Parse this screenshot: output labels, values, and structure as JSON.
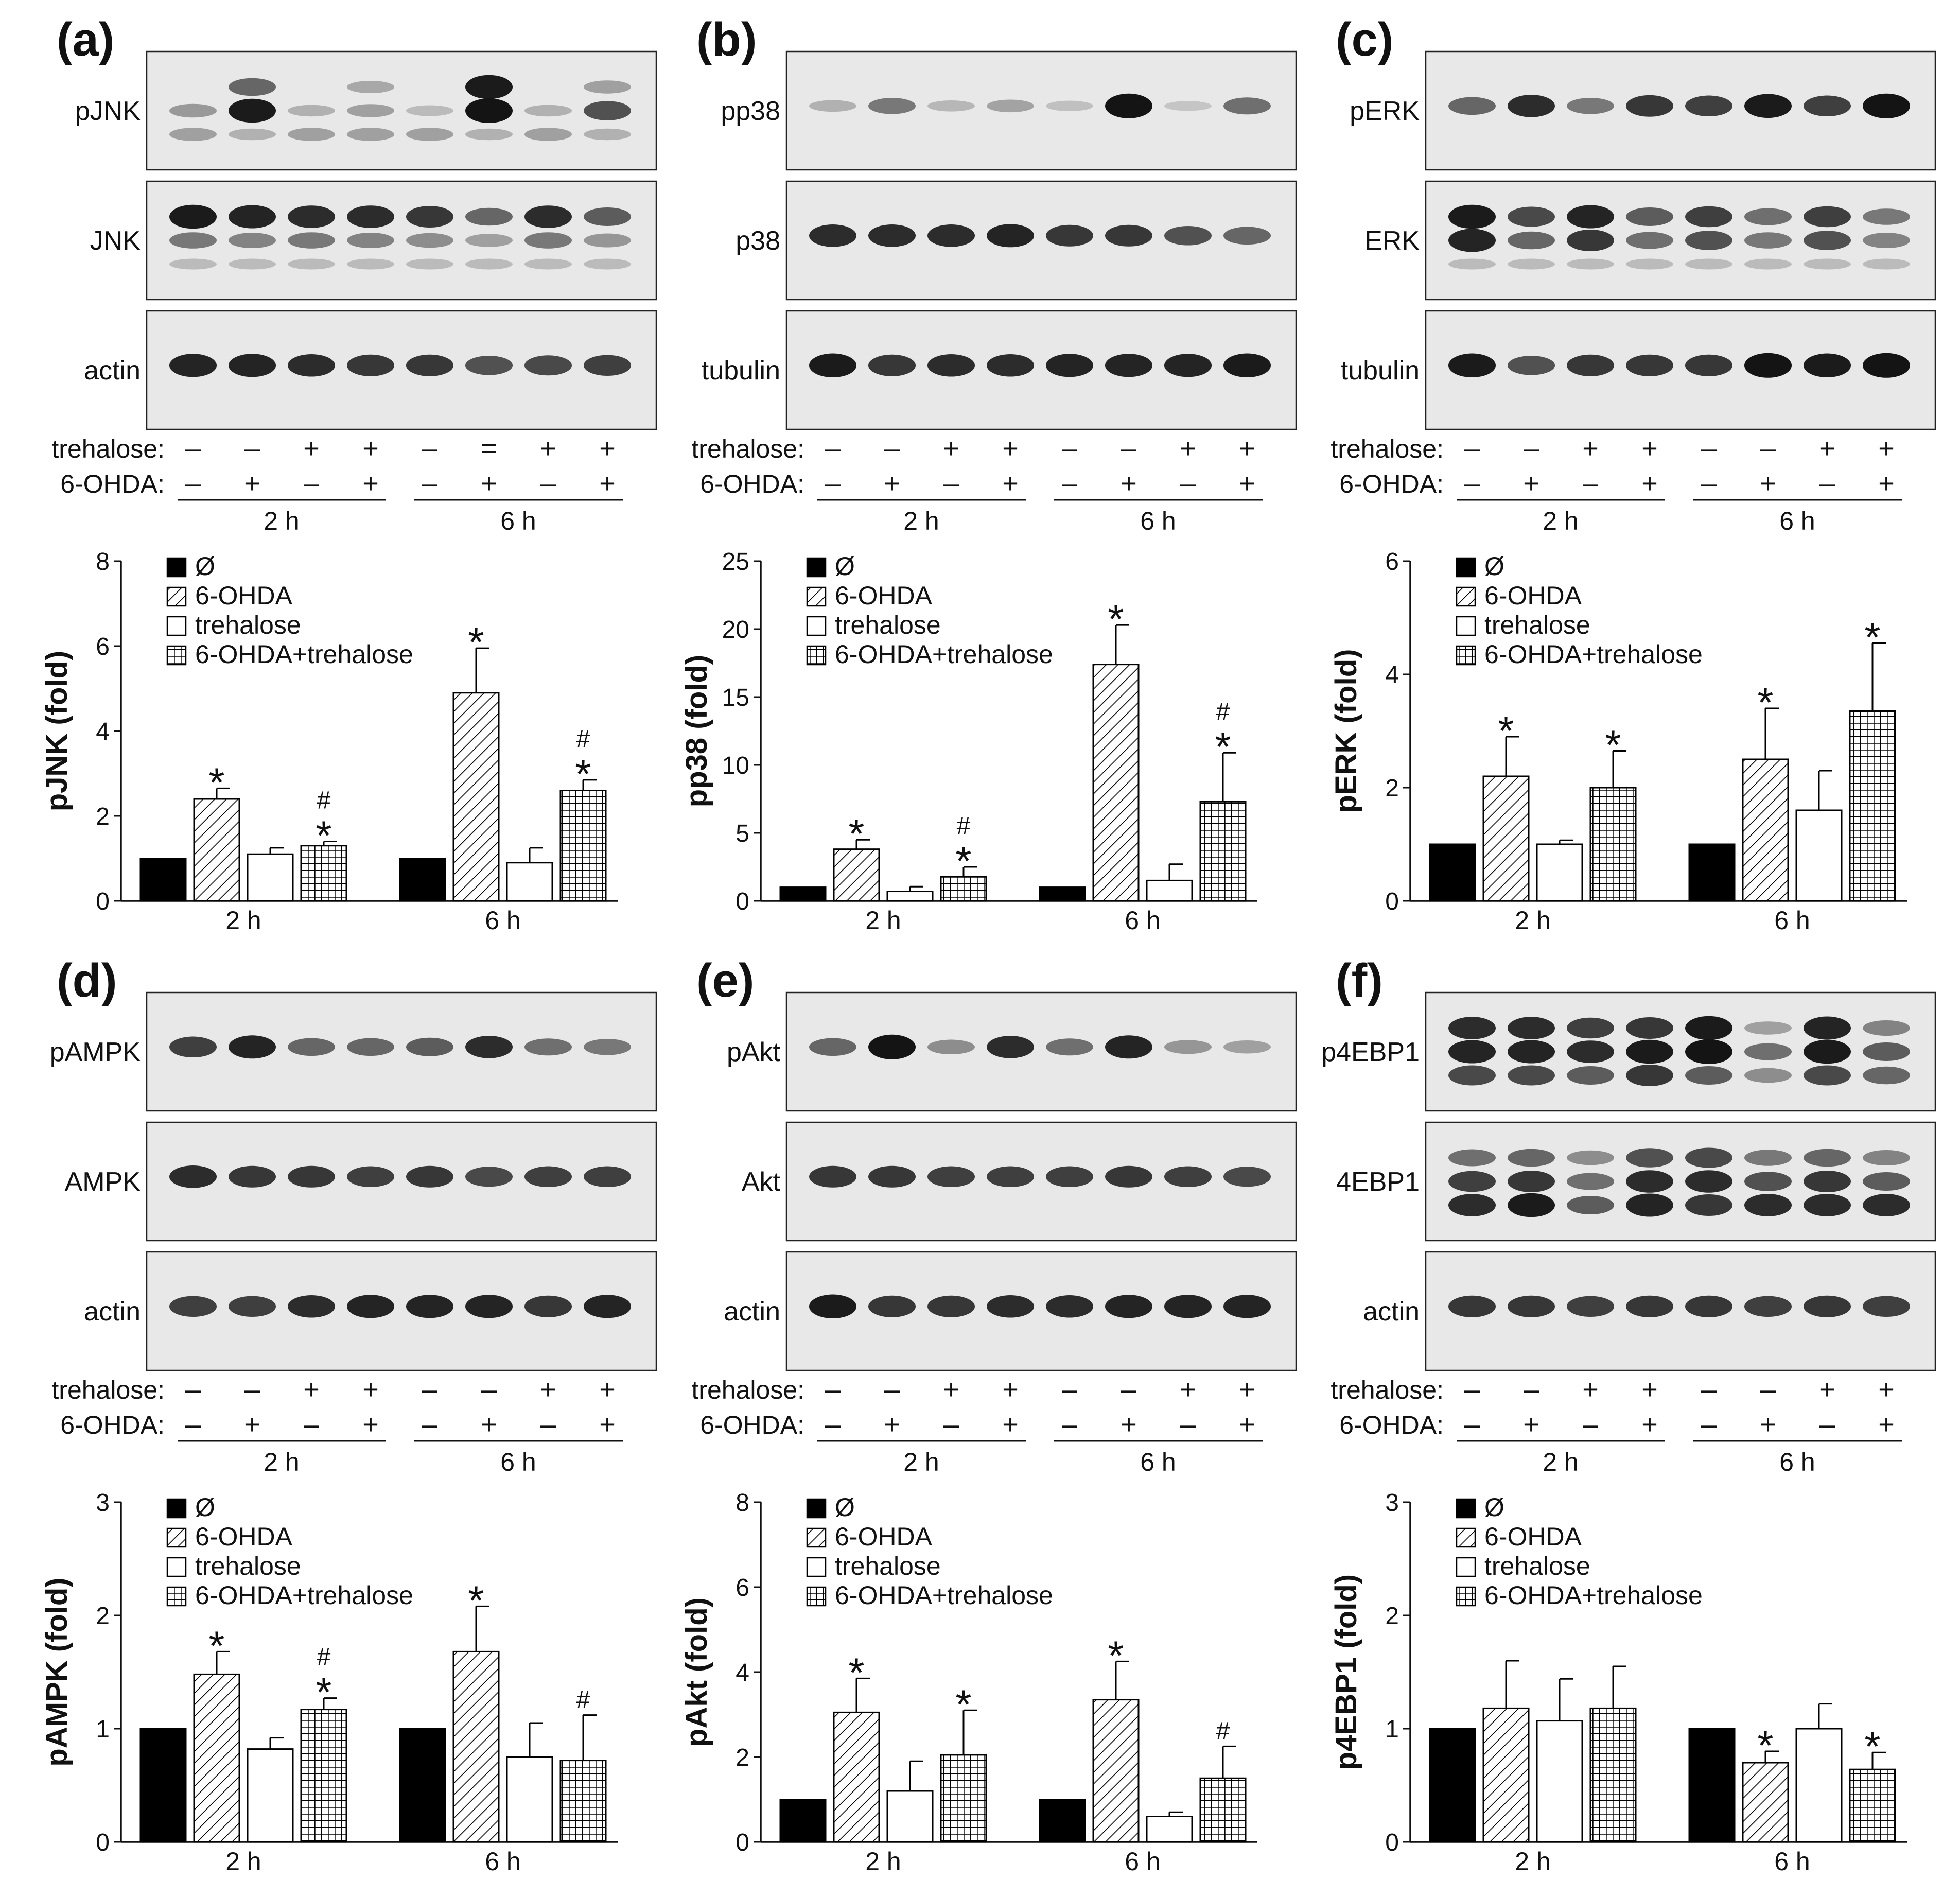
{
  "figure": {
    "groups": [
      "2 h",
      "6 h"
    ],
    "row_labels": [
      "trehalose:",
      "6-OHDA:"
    ],
    "trehalose_signs": [
      "–",
      "–",
      "+",
      "+",
      "–",
      "–",
      "+",
      "+"
    ],
    "trehalose_signs_a": [
      "–",
      "–",
      "+",
      "+",
      "–",
      "=",
      "+",
      "+"
    ],
    "ohda_signs": [
      "–",
      "+",
      "–",
      "+",
      "–",
      "+",
      "–",
      "+"
    ],
    "legend": [
      "Ø",
      "6-OHDA",
      "trehalose",
      "6-OHDA+trehalose"
    ],
    "colors": {
      "control": "#000000",
      "bar_fill": "#ffffff",
      "blot_bg": "#e8e8e8",
      "band": "#141414"
    }
  },
  "panels": [
    {
      "letter": "(a)",
      "blots": [
        {
          "label": "pJNK",
          "bands": [
            [
              0,
              0.28,
              0.25
            ],
            [
              0.55,
              0.95,
              0.15
            ],
            [
              0,
              0.15,
              0.25
            ],
            [
              0.2,
              0.25,
              0.25
            ],
            [
              0,
              0.1,
              0.25
            ],
            [
              0.95,
              1.0,
              0.15
            ],
            [
              0,
              0.15,
              0.25
            ],
            [
              0.25,
              0.65,
              0.15
            ]
          ]
        },
        {
          "label": "JNK",
          "bands": [
            [
              0.95,
              0.45,
              0.1
            ],
            [
              0.9,
              0.4,
              0.1
            ],
            [
              0.85,
              0.45,
              0.1
            ],
            [
              0.85,
              0.4,
              0.1
            ],
            [
              0.8,
              0.35,
              0.1
            ],
            [
              0.55,
              0.25,
              0.1
            ],
            [
              0.85,
              0.45,
              0.1
            ],
            [
              0.6,
              0.3,
              0.1
            ]
          ]
        },
        {
          "label": "actin",
          "bands": [
            [
              0.9
            ],
            [
              0.9
            ],
            [
              0.85
            ],
            [
              0.8
            ],
            [
              0.8
            ],
            [
              0.65
            ],
            [
              0.7
            ],
            [
              0.75
            ]
          ]
        }
      ],
      "treatment_row": "a"
    },
    {
      "letter": "(b)",
      "blots": [
        {
          "label": "pp38",
          "bands": [
            [
              0.15
            ],
            [
              0.45
            ],
            [
              0.12
            ],
            [
              0.22
            ],
            [
              0.08
            ],
            [
              1.0
            ],
            [
              0.04
            ],
            [
              0.5
            ]
          ]
        },
        {
          "label": "p38",
          "bands": [
            [
              0.85
            ],
            [
              0.85
            ],
            [
              0.85
            ],
            [
              0.9
            ],
            [
              0.8
            ],
            [
              0.8
            ],
            [
              0.65
            ],
            [
              0.55
            ]
          ]
        },
        {
          "label": "tubulin",
          "bands": [
            [
              0.95
            ],
            [
              0.8
            ],
            [
              0.85
            ],
            [
              0.85
            ],
            [
              0.9
            ],
            [
              0.9
            ],
            [
              0.9
            ],
            [
              0.95
            ]
          ]
        }
      ],
      "treatment_row": "default"
    },
    {
      "letter": "(c)",
      "blots": [
        {
          "label": "pERK",
          "bands": [
            [
              0.55
            ],
            [
              0.85
            ],
            [
              0.45
            ],
            [
              0.8
            ],
            [
              0.75
            ],
            [
              0.95
            ],
            [
              0.75
            ],
            [
              1.0
            ]
          ]
        },
        {
          "label": "ERK",
          "bands": [
            [
              0.95,
              0.9,
              0.1
            ],
            [
              0.7,
              0.55,
              0.1
            ],
            [
              0.9,
              0.8,
              0.1
            ],
            [
              0.6,
              0.5,
              0.1
            ],
            [
              0.75,
              0.65,
              0.1
            ],
            [
              0.5,
              0.45,
              0.1
            ],
            [
              0.75,
              0.65,
              0.1
            ],
            [
              0.45,
              0.4,
              0.1
            ]
          ]
        },
        {
          "label": "tubulin",
          "bands": [
            [
              0.95
            ],
            [
              0.65
            ],
            [
              0.8
            ],
            [
              0.8
            ],
            [
              0.8
            ],
            [
              1.0
            ],
            [
              0.95
            ],
            [
              1.0
            ]
          ]
        }
      ],
      "treatment_row": "default"
    },
    {
      "letter": "(d)",
      "blots": [
        {
          "label": "pAMPK",
          "bands": [
            [
              0.75
            ],
            [
              0.9
            ],
            [
              0.55
            ],
            [
              0.55
            ],
            [
              0.6
            ],
            [
              0.85
            ],
            [
              0.5
            ],
            [
              0.45
            ]
          ]
        },
        {
          "label": "AMPK",
          "bands": [
            [
              0.85
            ],
            [
              0.8
            ],
            [
              0.8
            ],
            [
              0.75
            ],
            [
              0.8
            ],
            [
              0.7
            ],
            [
              0.75
            ],
            [
              0.75
            ]
          ]
        },
        {
          "label": "actin",
          "bands": [
            [
              0.75
            ],
            [
              0.75
            ],
            [
              0.85
            ],
            [
              0.9
            ],
            [
              0.9
            ],
            [
              0.9
            ],
            [
              0.8
            ],
            [
              0.9
            ]
          ]
        }
      ],
      "treatment_row": "default"
    },
    {
      "letter": "(e)",
      "blots": [
        {
          "label": "pAkt",
          "bands": [
            [
              0.55
            ],
            [
              1.0
            ],
            [
              0.35
            ],
            [
              0.85
            ],
            [
              0.5
            ],
            [
              0.9
            ],
            [
              0.3
            ],
            [
              0.25
            ]
          ]
        },
        {
          "label": "Akt",
          "bands": [
            [
              0.8
            ],
            [
              0.8
            ],
            [
              0.75
            ],
            [
              0.75
            ],
            [
              0.75
            ],
            [
              0.8
            ],
            [
              0.75
            ],
            [
              0.7
            ]
          ]
        },
        {
          "label": "actin",
          "bands": [
            [
              0.95
            ],
            [
              0.8
            ],
            [
              0.8
            ],
            [
              0.85
            ],
            [
              0.85
            ],
            [
              0.9
            ],
            [
              0.9
            ],
            [
              0.9
            ]
          ]
        }
      ],
      "treatment_row": "default"
    },
    {
      "letter": "(f)",
      "blots": [
        {
          "label": "p4EBP1",
          "bands": [
            [
              0.85,
              0.9,
              0.7
            ],
            [
              0.85,
              0.9,
              0.7
            ],
            [
              0.75,
              0.85,
              0.6
            ],
            [
              0.8,
              0.95,
              0.8
            ],
            [
              0.95,
              1.0,
              0.6
            ],
            [
              0.25,
              0.5,
              0.35
            ],
            [
              0.9,
              0.95,
              0.7
            ],
            [
              0.4,
              0.6,
              0.55
            ]
          ]
        },
        {
          "label": "4EBP1",
          "bands": [
            [
              0.5,
              0.75,
              0.85
            ],
            [
              0.55,
              0.8,
              0.95
            ],
            [
              0.35,
              0.5,
              0.6
            ],
            [
              0.65,
              0.85,
              0.9
            ],
            [
              0.7,
              0.85,
              0.8
            ],
            [
              0.45,
              0.65,
              0.85
            ],
            [
              0.55,
              0.8,
              0.85
            ],
            [
              0.4,
              0.6,
              0.85
            ]
          ]
        },
        {
          "label": "actin",
          "bands": [
            [
              0.8
            ],
            [
              0.8
            ],
            [
              0.75
            ],
            [
              0.8
            ],
            [
              0.8
            ],
            [
              0.75
            ],
            [
              0.8
            ],
            [
              0.75
            ]
          ]
        }
      ],
      "treatment_row": "default"
    }
  ],
  "chart_data": [
    {
      "type": "bar",
      "panel": "(a)",
      "ylabel": "pJNK (fold)",
      "ylim": [
        0,
        8
      ],
      "yticks": [
        0,
        2,
        4,
        6,
        8
      ],
      "categories": [
        "2 h",
        "6 h"
      ],
      "series": [
        {
          "name": "Ø",
          "values": [
            1.0,
            1.0
          ],
          "errors": [
            0,
            0
          ],
          "marks": [
            "",
            ""
          ]
        },
        {
          "name": "6-OHDA",
          "values": [
            2.4,
            4.9
          ],
          "errors": [
            0.25,
            1.05
          ],
          "marks": [
            "*",
            "*"
          ]
        },
        {
          "name": "trehalose",
          "values": [
            1.1,
            0.9
          ],
          "errors": [
            0.15,
            0.35
          ],
          "marks": [
            "",
            ""
          ]
        },
        {
          "name": "6-OHDA+trehalose",
          "values": [
            1.3,
            2.6
          ],
          "errors": [
            0.1,
            0.25
          ],
          "marks": [
            "#*",
            "#*"
          ]
        }
      ]
    },
    {
      "type": "bar",
      "panel": "(b)",
      "ylabel": "pp38 (fold)",
      "ylim": [
        0,
        25
      ],
      "yticks": [
        0,
        5,
        10,
        15,
        20,
        25
      ],
      "categories": [
        "2 h",
        "6 h"
      ],
      "series": [
        {
          "name": "Ø",
          "values": [
            1.0,
            1.0
          ],
          "errors": [
            0,
            0
          ],
          "marks": [
            "",
            ""
          ]
        },
        {
          "name": "6-OHDA",
          "values": [
            3.8,
            17.4
          ],
          "errors": [
            0.7,
            2.9
          ],
          "marks": [
            "*",
            "*"
          ]
        },
        {
          "name": "trehalose",
          "values": [
            0.7,
            1.5
          ],
          "errors": [
            0.35,
            1.2
          ],
          "marks": [
            "",
            ""
          ]
        },
        {
          "name": "6-OHDA+trehalose",
          "values": [
            1.8,
            7.3
          ],
          "errors": [
            0.7,
            3.6
          ],
          "marks": [
            "#*",
            "#*"
          ]
        }
      ]
    },
    {
      "type": "bar",
      "panel": "(c)",
      "ylabel": "pERK (fold)",
      "ylim": [
        0,
        6
      ],
      "yticks": [
        0,
        2,
        4,
        6
      ],
      "categories": [
        "2 h",
        "6 h"
      ],
      "series": [
        {
          "name": "Ø",
          "values": [
            1.0,
            1.0
          ],
          "errors": [
            0,
            0
          ],
          "marks": [
            "",
            ""
          ]
        },
        {
          "name": "6-OHDA",
          "values": [
            2.2,
            2.5
          ],
          "errors": [
            0.7,
            0.9
          ],
          "marks": [
            "*",
            "*"
          ]
        },
        {
          "name": "trehalose",
          "values": [
            1.0,
            1.6
          ],
          "errors": [
            0.07,
            0.7
          ],
          "marks": [
            "",
            ""
          ]
        },
        {
          "name": "6-OHDA+trehalose",
          "values": [
            2.0,
            3.35
          ],
          "errors": [
            0.65,
            1.2
          ],
          "marks": [
            "*",
            "*"
          ]
        }
      ]
    },
    {
      "type": "bar",
      "panel": "(d)",
      "ylabel": "pAMPK (fold)",
      "ylim": [
        0,
        3
      ],
      "yticks": [
        0,
        1,
        2,
        3
      ],
      "categories": [
        "2 h",
        "6 h"
      ],
      "series": [
        {
          "name": "Ø",
          "values": [
            1.0,
            1.0
          ],
          "errors": [
            0,
            0
          ],
          "marks": [
            "",
            ""
          ]
        },
        {
          "name": "6-OHDA",
          "values": [
            1.48,
            1.68
          ],
          "errors": [
            0.2,
            0.4
          ],
          "marks": [
            "*",
            "*"
          ]
        },
        {
          "name": "trehalose",
          "values": [
            0.82,
            0.75
          ],
          "errors": [
            0.1,
            0.3
          ],
          "marks": [
            "",
            ""
          ]
        },
        {
          "name": "6-OHDA+trehalose",
          "values": [
            1.17,
            0.72
          ],
          "errors": [
            0.1,
            0.4
          ],
          "marks": [
            "#*",
            "#"
          ]
        }
      ]
    },
    {
      "type": "bar",
      "panel": "(e)",
      "ylabel": "pAkt (fold)",
      "ylim": [
        0,
        8
      ],
      "yticks": [
        0,
        2,
        4,
        6,
        8
      ],
      "categories": [
        "2 h",
        "6 h"
      ],
      "series": [
        {
          "name": "Ø",
          "values": [
            1.0,
            1.0
          ],
          "errors": [
            0,
            0
          ],
          "marks": [
            "",
            ""
          ]
        },
        {
          "name": "6-OHDA",
          "values": [
            3.05,
            3.35
          ],
          "errors": [
            0.8,
            0.9
          ],
          "marks": [
            "*",
            "*"
          ]
        },
        {
          "name": "trehalose",
          "values": [
            1.2,
            0.6
          ],
          "errors": [
            0.7,
            0.1
          ],
          "marks": [
            "",
            ""
          ]
        },
        {
          "name": "6-OHDA+trehalose",
          "values": [
            2.05,
            1.5
          ],
          "errors": [
            1.05,
            0.75
          ],
          "marks": [
            "*",
            "#"
          ]
        }
      ]
    },
    {
      "type": "bar",
      "panel": "(f)",
      "ylabel": "p4EBP1 (fold)",
      "ylim": [
        0,
        3
      ],
      "yticks": [
        0,
        1,
        2,
        3
      ],
      "categories": [
        "2 h",
        "6 h"
      ],
      "series": [
        {
          "name": "Ø",
          "values": [
            1.0,
            1.0
          ],
          "errors": [
            0,
            0
          ],
          "marks": [
            "",
            ""
          ]
        },
        {
          "name": "6-OHDA",
          "values": [
            1.18,
            0.7
          ],
          "errors": [
            0.42,
            0.1
          ],
          "marks": [
            "",
            "*"
          ]
        },
        {
          "name": "trehalose",
          "values": [
            1.07,
            1.0
          ],
          "errors": [
            0.37,
            0.22
          ],
          "marks": [
            "",
            ""
          ]
        },
        {
          "name": "6-OHDA+trehalose",
          "values": [
            1.18,
            0.64
          ],
          "errors": [
            0.37,
            0.15
          ],
          "marks": [
            "",
            "*"
          ]
        }
      ]
    }
  ]
}
